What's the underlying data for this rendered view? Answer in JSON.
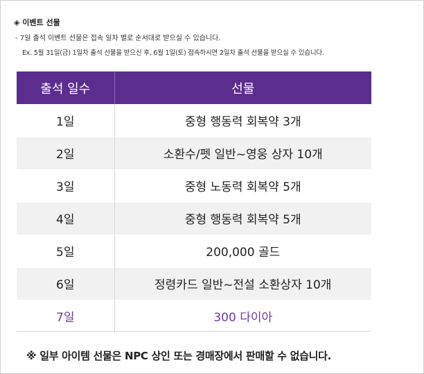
{
  "header": {
    "title": "◈ 이벤트 선물",
    "note_line1": "- 7일 출석 이벤트 선물은 접속 일차 별로 순서대로 받으실 수 있습니다.",
    "note_line2": "Ex. 5월 31일(금) 1일차 출석 선물을 받으신 후, 6월 1일(토) 접속하시면 2일차 출석 선물을 받으실 수 있습니다."
  },
  "table": {
    "columns": [
      "출석 일수",
      "선물"
    ],
    "rows": [
      {
        "day": "1일",
        "reward": "중형 행동력 회복약 3개"
      },
      {
        "day": "2일",
        "reward": "소환수/펫 일반~영웅 상자 10개"
      },
      {
        "day": "3일",
        "reward": "중형 노동력 회복약 5개"
      },
      {
        "day": "4일",
        "reward": "중형 행동력 회복약 5개"
      },
      {
        "day": "5일",
        "reward": "200,000 골드"
      },
      {
        "day": "6일",
        "reward": "정령카드 일반~전설 소환상자 10개"
      },
      {
        "day": "7일",
        "reward": "300 다이아"
      }
    ]
  },
  "footnote": "※ 일부 아이템 선물은 NPC 상인 또는 경매장에서 판매할 수 없습니다.",
  "colors": {
    "header_bg": "#5b2d8e",
    "last_row_text": "#6a3aa0",
    "alt_row_bg": "#f1f1f1"
  }
}
